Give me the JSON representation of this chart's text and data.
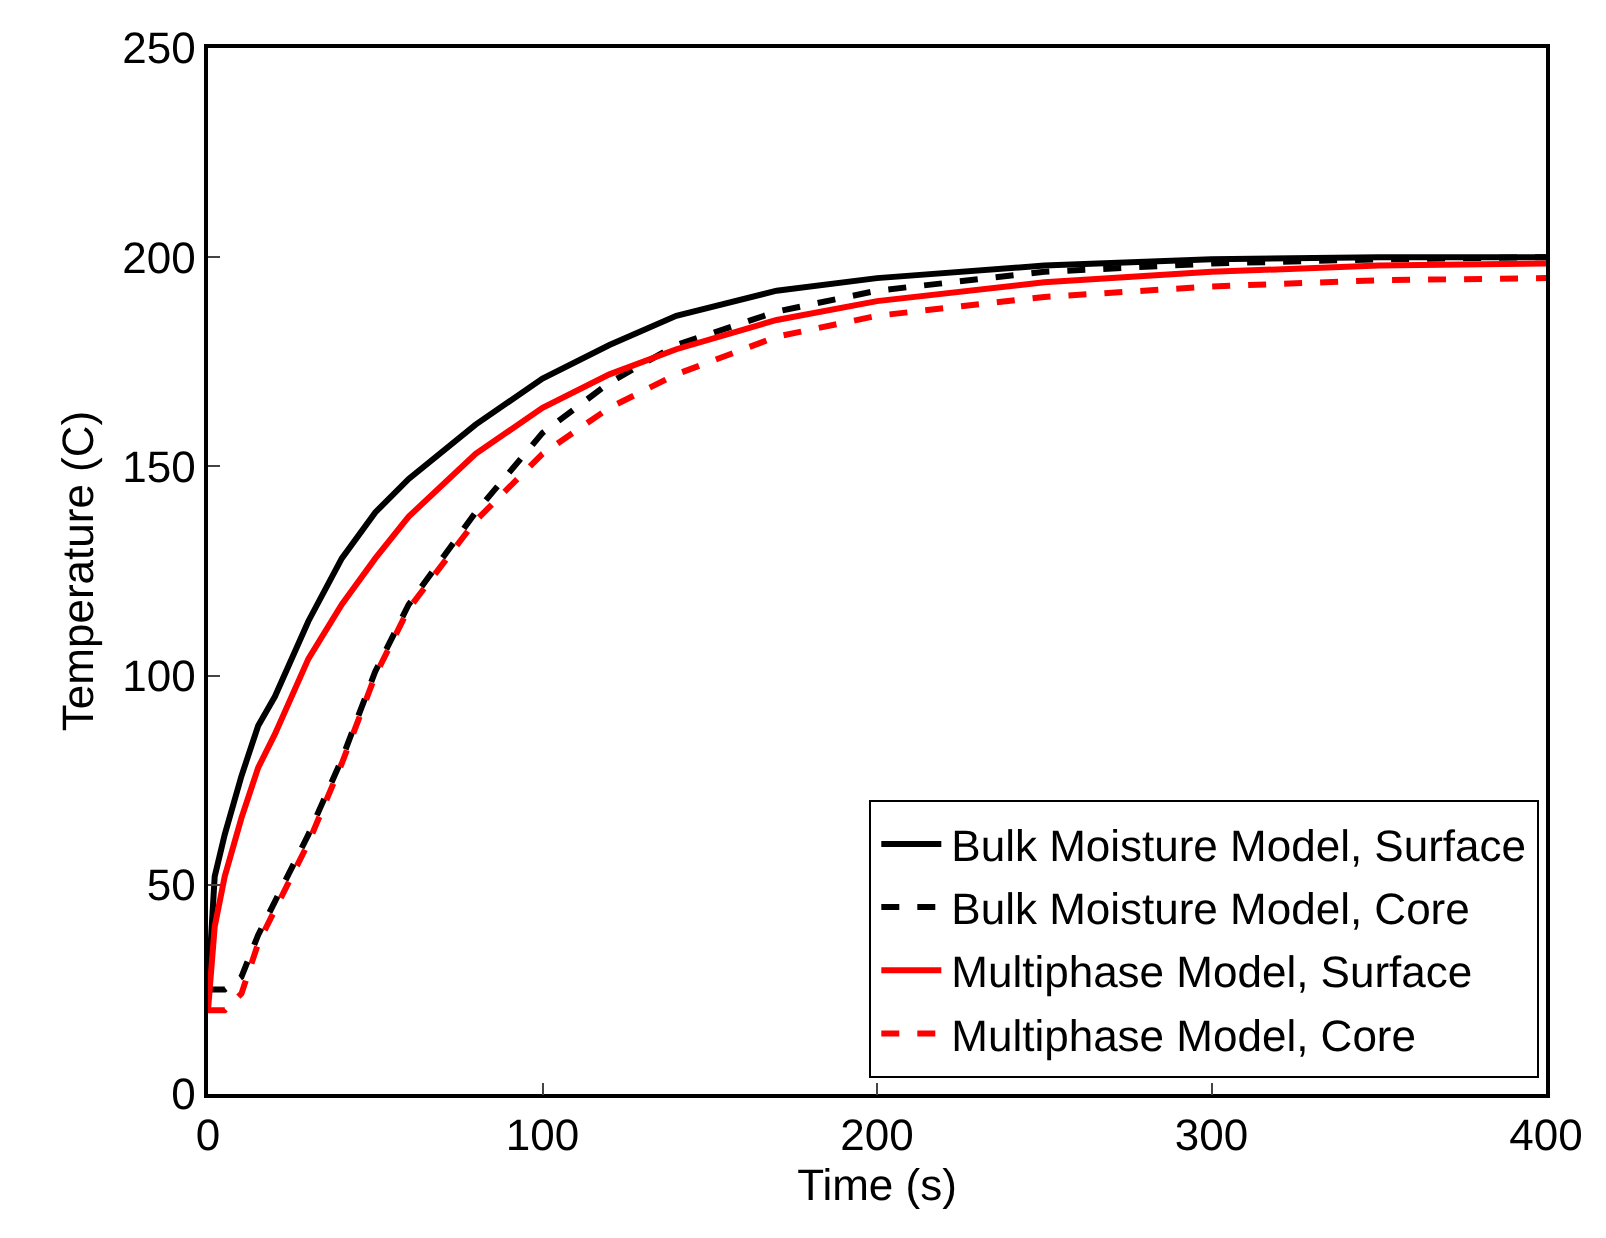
{
  "chart_data": {
    "type": "line",
    "xlabel": "Time (s)",
    "ylabel": "Temperature (C)",
    "x": [
      0,
      2,
      5,
      10,
      15,
      20,
      30,
      40,
      50,
      60,
      80,
      100,
      120,
      140,
      170,
      200,
      250,
      300,
      350,
      400
    ],
    "series": [
      {
        "name": "Bulk Moisture Model, Surface",
        "color": "#000000",
        "line_style": "solid",
        "values": [
          25,
          52,
          62,
          76,
          88,
          95,
          113,
          128,
          139,
          147,
          160,
          171,
          179,
          186,
          192,
          195,
          198,
          199.5,
          200,
          200
        ]
      },
      {
        "name": "Bulk Moisture Model, Core",
        "color": "#000000",
        "line_style": "dashed",
        "values": [
          25,
          25,
          25,
          28,
          38,
          46,
          62,
          80,
          101,
          117,
          139,
          158,
          170,
          179,
          187,
          192,
          196.5,
          198.5,
          199.5,
          200
        ]
      },
      {
        "name": "Multiphase Model, Surface",
        "color": "#ff0000",
        "line_style": "solid",
        "values": [
          20,
          40,
          52,
          66,
          78,
          86,
          104,
          117,
          128,
          138,
          153,
          164,
          172,
          178,
          185,
          189.5,
          194,
          196.5,
          198,
          198.5
        ]
      },
      {
        "name": "Multiphase Model, Core",
        "color": "#ff0000",
        "line_style": "dashed",
        "values": [
          20,
          20,
          20,
          24,
          36,
          44,
          60,
          79,
          100,
          116,
          137,
          153,
          164,
          172,
          181,
          186,
          190.5,
          193,
          194.5,
          195
        ]
      }
    ],
    "xlim": [
      0,
      400
    ],
    "xticks": [
      0,
      100,
      200,
      300,
      400
    ],
    "ylim": [
      0,
      250
    ],
    "yticks": [
      0,
      50,
      100,
      150,
      200,
      250
    ],
    "legend": "bottom right",
    "marker": "none"
  }
}
